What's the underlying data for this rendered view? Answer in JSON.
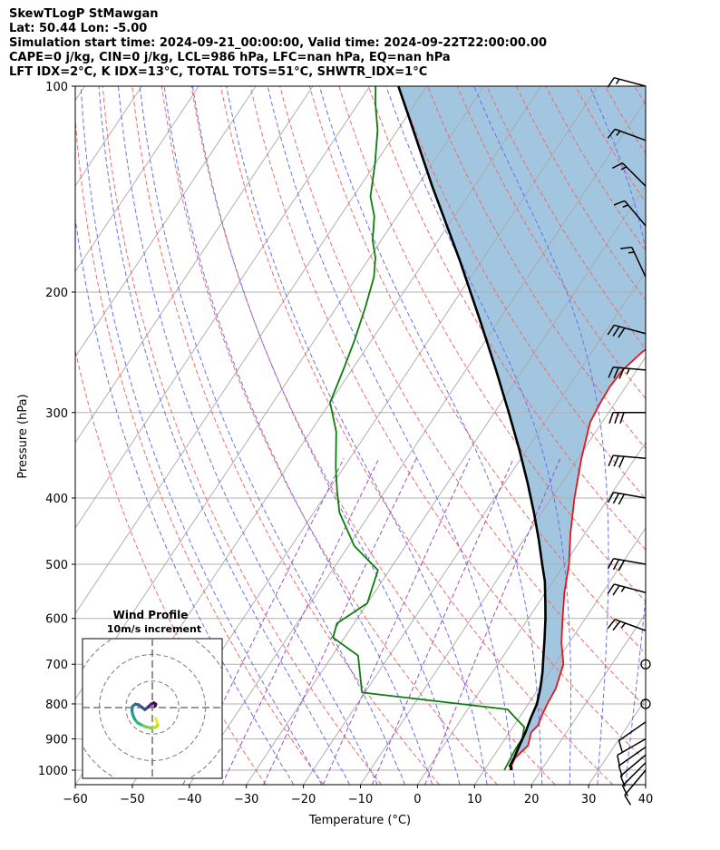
{
  "header": {
    "line1": "SkewTLogP StMawgan",
    "line2": "Lat: 50.44   Lon: -5.00",
    "line3": "Simulation start time: 2024-09-21_00:00:00, Valid time: 2024-09-22T22:00:00.00",
    "line4": "CAPE=0 j/kg, CIN=0 j/kg, LCL=986 hPa, LFC=nan hPa, EQ=nan hPa",
    "line5": "LFT IDX=2°C, K IDX=13°C, TOTAL TOTS=51°C, SHWTR_IDX=1°C"
  },
  "chart_data": [
    {
      "type": "line",
      "title": "SkewTLogP StMawgan",
      "xlabel": "Temperature (°C)",
      "ylabel": "Pressure (hPa)",
      "xlim": [
        -60,
        40
      ],
      "ylim": [
        1050,
        100
      ],
      "y_scale": "log",
      "x_ticks": [
        -60,
        -50,
        -40,
        -30,
        -20,
        -10,
        0,
        10,
        20,
        30,
        40
      ],
      "x_tick_labels": [
        "−60",
        "−50",
        "−40",
        "−30",
        "−20",
        "−10",
        "0",
        "10",
        "20",
        "30",
        "40"
      ],
      "y_ticks": [
        100,
        200,
        300,
        400,
        500,
        600,
        700,
        800,
        900,
        1000
      ],
      "y_tick_labels": [
        "100",
        "200",
        "300",
        "400",
        "500",
        "600",
        "700",
        "800",
        "900",
        "1000"
      ],
      "grid": true,
      "series": [
        {
          "name": "temperature",
          "color": "#e8141b",
          "points": [
            [
              14.5,
              1000
            ],
            [
              14.2,
              980
            ],
            [
              14.0,
              960
            ],
            [
              14.8,
              920
            ],
            [
              13.8,
              880
            ],
            [
              14.2,
              860
            ],
            [
              13.7,
              830
            ],
            [
              13.3,
              800
            ],
            [
              13.0,
              760
            ],
            [
              11.5,
              700
            ],
            [
              8.6,
              650
            ],
            [
              6.0,
              600
            ],
            [
              3.3,
              550
            ],
            [
              0.8,
              500
            ],
            [
              -2.6,
              450
            ],
            [
              -6.0,
              400
            ],
            [
              -9.4,
              350
            ],
            [
              -12.1,
              310
            ],
            [
              -12.6,
              290
            ],
            [
              -12.8,
              275
            ],
            [
              -12.5,
              260
            ],
            [
              -11.2,
              245
            ],
            [
              -9.0,
              230
            ],
            [
              -6.5,
              215
            ],
            [
              -5.0,
              205
            ],
            [
              -4.7,
              195
            ],
            [
              -4.2,
              185
            ],
            [
              -3.0,
              170
            ],
            [
              -1.8,
              155
            ],
            [
              -0.5,
              140
            ],
            [
              1.5,
              125
            ],
            [
              2.0,
              118
            ],
            [
              2.2,
              112
            ],
            [
              2.3,
              100
            ]
          ]
        },
        {
          "name": "dewpoint",
          "color": "#0c7d0c",
          "points": [
            [
              13.5,
              1000
            ],
            [
              13.3,
              970
            ],
            [
              13.0,
              930
            ],
            [
              13.0,
              900
            ],
            [
              12.0,
              865
            ],
            [
              9.5,
              840
            ],
            [
              7.0,
              815
            ],
            [
              -20.5,
              770
            ],
            [
              -25.5,
              680
            ],
            [
              -32.0,
              640
            ],
            [
              -33.0,
              610
            ],
            [
              -30.0,
              570
            ],
            [
              -32.0,
              510
            ],
            [
              -39.0,
              470
            ],
            [
              -41.5,
              450
            ],
            [
              -45.5,
              420
            ],
            [
              -48.5,
              390
            ],
            [
              -51.5,
              360
            ],
            [
              -55.5,
              320
            ],
            [
              -60.0,
              290
            ],
            [
              -61.5,
              260
            ],
            [
              -63.0,
              235
            ],
            [
              -65.0,
              210
            ],
            [
              -67.0,
              190
            ],
            [
              -69.0,
              178
            ],
            [
              -71.5,
              168
            ],
            [
              -74.0,
              155
            ],
            [
              -77.0,
              145
            ],
            [
              -80.0,
              130
            ],
            [
              -83.5,
              116
            ],
            [
              -87.0,
              106
            ],
            [
              -89.0,
              100
            ]
          ]
        },
        {
          "name": "parcel",
          "color": "#000000",
          "points": [
            [
              14.7,
              1000
            ],
            [
              14.4,
              990
            ],
            [
              14.0,
              986
            ],
            [
              13.8,
              960
            ],
            [
              13.3,
              920
            ],
            [
              12.8,
              880
            ],
            [
              12.1,
              840
            ],
            [
              11.5,
              800
            ],
            [
              10.3,
              760
            ],
            [
              8.8,
              720
            ],
            [
              7.0,
              680
            ],
            [
              5.1,
              640
            ],
            [
              3.0,
              600
            ],
            [
              1.2,
              570
            ],
            [
              -1.4,
              530
            ],
            [
              -3.9,
              500
            ],
            [
              -7.4,
              460
            ],
            [
              -11.4,
              420
            ],
            [
              -16.0,
              380
            ],
            [
              -21.3,
              340
            ],
            [
              -27.5,
              300
            ],
            [
              -34.7,
              260
            ],
            [
              -43.3,
              220
            ],
            [
              -53.8,
              180
            ],
            [
              -67.4,
              140
            ],
            [
              -80.0,
              110
            ],
            [
              -85.0,
              100
            ]
          ]
        }
      ],
      "shaded_regions": [
        {
          "between": [
            "temperature",
            "parcel"
          ],
          "color": "#a2c6e0"
        }
      ]
    },
    {
      "type": "scatter",
      "title": "Wind Profile",
      "subtitle": "10m/s increment",
      "color_map": "viridis",
      "points": [
        [
          0.5,
          -1.6
        ],
        [
          0.7,
          -2.2
        ],
        [
          0.8,
          -2.6
        ],
        [
          0.5,
          -2.9
        ],
        [
          -0.2,
          -3.0
        ],
        [
          -1.0,
          -2.8
        ],
        [
          -1.7,
          -2.5
        ],
        [
          -2.2,
          -2.2
        ],
        [
          -2.6,
          -1.7
        ],
        [
          -2.9,
          -1.0
        ],
        [
          -3.0,
          -0.4
        ],
        [
          -2.9,
          0.2
        ],
        [
          -2.5,
          0.5
        ],
        [
          -2.0,
          0.4
        ],
        [
          -1.6,
          0.1
        ],
        [
          -1.1,
          -0.3
        ],
        [
          -0.6,
          0.1
        ],
        [
          -0.2,
          0.5
        ],
        [
          0.2,
          0.7
        ],
        [
          0.5,
          0.5
        ],
        [
          0.4,
          0.2
        ]
      ]
    },
    {
      "type": "barbs",
      "name": "wind barbs",
      "pressure_hpa": [
        1000,
        975,
        950,
        925,
        900,
        850,
        800,
        700,
        625,
        550,
        500,
        400,
        350,
        300,
        260,
        230,
        190,
        160,
        140,
        120,
        100
      ],
      "speed_kt": [
        10,
        10,
        10,
        10,
        10,
        10,
        0,
        0,
        25,
        25,
        30,
        30,
        30,
        30,
        35,
        30,
        15,
        15,
        15,
        15,
        15
      ],
      "direction_deg": [
        220,
        225,
        230,
        235,
        240,
        235,
        0,
        0,
        290,
        285,
        280,
        280,
        275,
        270,
        275,
        285,
        335,
        320,
        315,
        290,
        285
      ]
    }
  ]
}
